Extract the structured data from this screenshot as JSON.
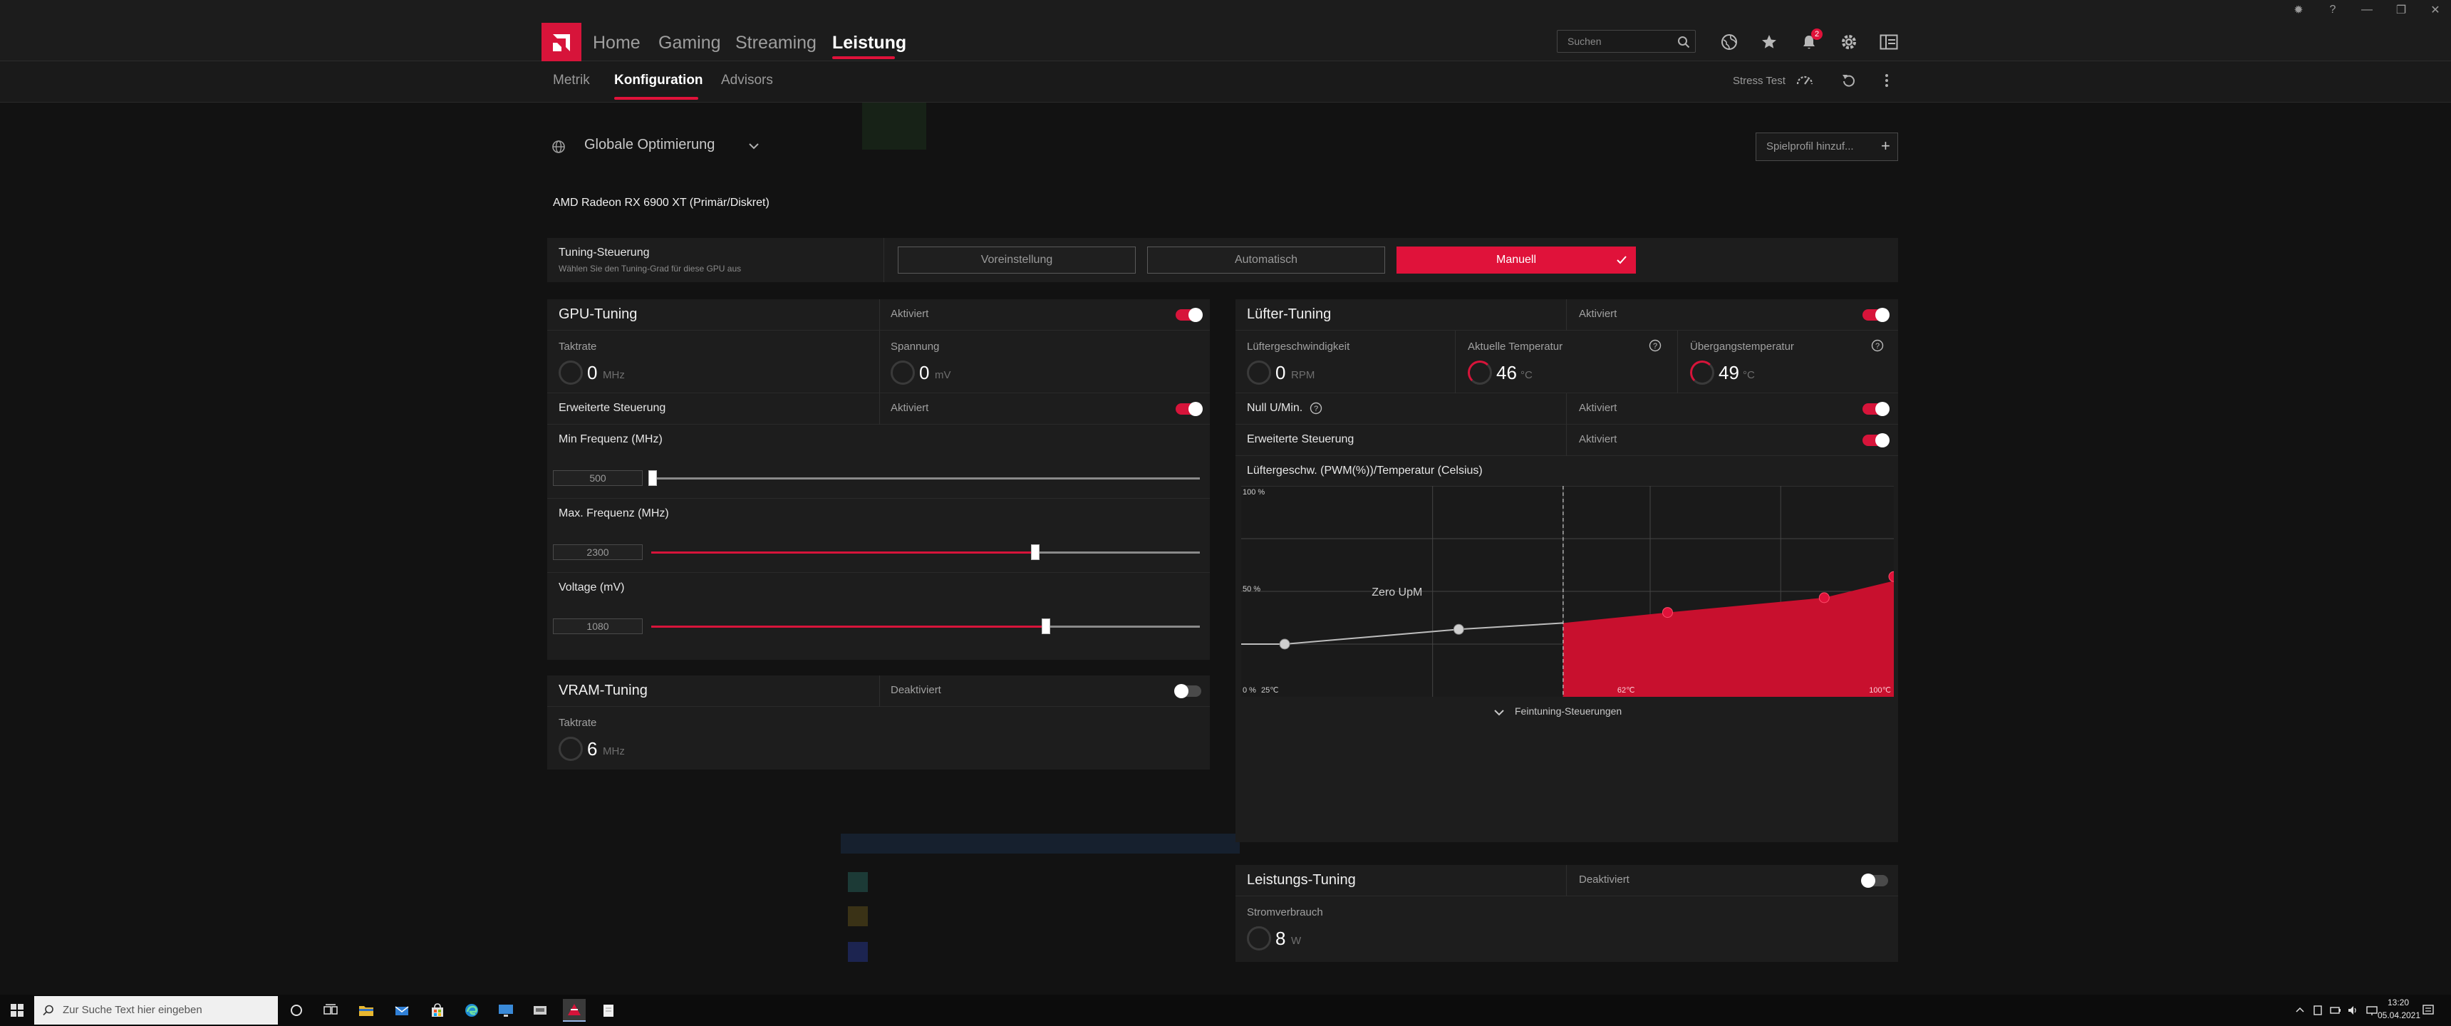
{
  "window": {
    "controls": [
      "settings-icon",
      "help-icon",
      "minimize-icon",
      "restore-icon",
      "close-icon"
    ]
  },
  "nav": {
    "items": [
      {
        "label": "Home",
        "active": false
      },
      {
        "label": "Gaming",
        "active": false
      },
      {
        "label": "Streaming",
        "active": false
      },
      {
        "label": "Leistung",
        "active": true
      }
    ],
    "search_placeholder": "Suchen",
    "notification_count": "2",
    "accent_color": "#e0123a"
  },
  "subnav": {
    "items": [
      {
        "label": "Metrik",
        "active": false
      },
      {
        "label": "Konfiguration",
        "active": true
      },
      {
        "label": "Advisors",
        "active": false
      }
    ],
    "stress_test": "Stress Test"
  },
  "profile": {
    "label": "Globale Optimierung",
    "add_game_profile": "Spielprofil hinzuf...",
    "gpu_name": "AMD Radeon RX 6900 XT (Primär/Diskret)"
  },
  "tuning_control": {
    "label": "Tuning-Steuerung",
    "sublabel": "Wählen Sie den Tuning-Grad für diese GPU aus",
    "options": [
      "Voreinstellung",
      "Automatisch",
      "Manuell"
    ],
    "selected": "Manuell"
  },
  "gpu_tuning": {
    "title": "GPU-Tuning",
    "status": "Aktiviert",
    "enabled": true,
    "clock_label": "Taktrate",
    "clock_value": "0",
    "clock_unit": "MHz",
    "voltage_label": "Spannung",
    "voltage_value": "0",
    "voltage_unit": "mV",
    "advanced_label": "Erweiterte Steuerung",
    "advanced_status": "Aktiviert",
    "advanced_enabled": true,
    "sliders": [
      {
        "label": "Min Frequenz (MHz)",
        "value": "500",
        "fraction": 0.0
      },
      {
        "label": "Max. Frequenz (MHz)",
        "value": "2300",
        "fraction": 0.7
      },
      {
        "label": "Voltage (mV)",
        "value": "1080",
        "fraction": 0.72
      }
    ]
  },
  "vram_tuning": {
    "title": "VRAM-Tuning",
    "status": "Deaktiviert",
    "enabled": false,
    "clock_label": "Taktrate",
    "clock_value": "6",
    "clock_unit": "MHz"
  },
  "fan_tuning": {
    "title": "Lüfter-Tuning",
    "status": "Aktiviert",
    "enabled": true,
    "fan_speed_label": "Lüftergeschwindigkeit",
    "fan_speed_value": "0",
    "fan_speed_unit": "RPM",
    "current_temp_label": "Aktuelle Temperatur",
    "current_temp_value": "46",
    "current_temp_unit": "°C",
    "junction_temp_label": "Übergangstemperatur",
    "junction_temp_value": "49",
    "junction_temp_unit": "°C",
    "zero_rpm_label": "Null U/Min.",
    "zero_rpm_status": "Aktiviert",
    "zero_rpm_enabled": true,
    "advanced_label": "Erweiterte Steuerung",
    "advanced_status": "Aktiviert",
    "advanced_enabled": true,
    "chart_title": "Lüftergeschw. (PWM(%))/Temperatur (Celsius)",
    "zero_label": "Zero UpM",
    "fine_tuning_label": "Feintuning-Steuerungen"
  },
  "chart_data": {
    "type": "line",
    "title": "Lüftergeschw. (PWM(%))/Temperatur (Celsius)",
    "xlabel": "",
    "ylabel": "",
    "y_tick_labels": [
      "100 %",
      "50 %",
      "0 %"
    ],
    "x_tick_labels": [
      "25℃",
      "62℃",
      "100℃"
    ],
    "xlim": [
      25,
      100
    ],
    "ylim": [
      0,
      100
    ],
    "zero_rpm_threshold": 62,
    "annotation": "Zero UpM",
    "series": [
      {
        "x": [
          30,
          50,
          62,
          74,
          92,
          102
        ],
        "y": [
          25,
          32,
          35,
          40,
          47,
          57
        ]
      }
    ]
  },
  "power_tuning": {
    "title": "Leistungs-Tuning",
    "status": "Deaktiviert",
    "enabled": false,
    "power_label": "Stromverbrauch",
    "power_value": "8",
    "power_unit": "W"
  },
  "taskbar": {
    "search_placeholder": "Zur Suche Text hier eingeben",
    "time": "13:20",
    "date": "05.04.2021"
  }
}
